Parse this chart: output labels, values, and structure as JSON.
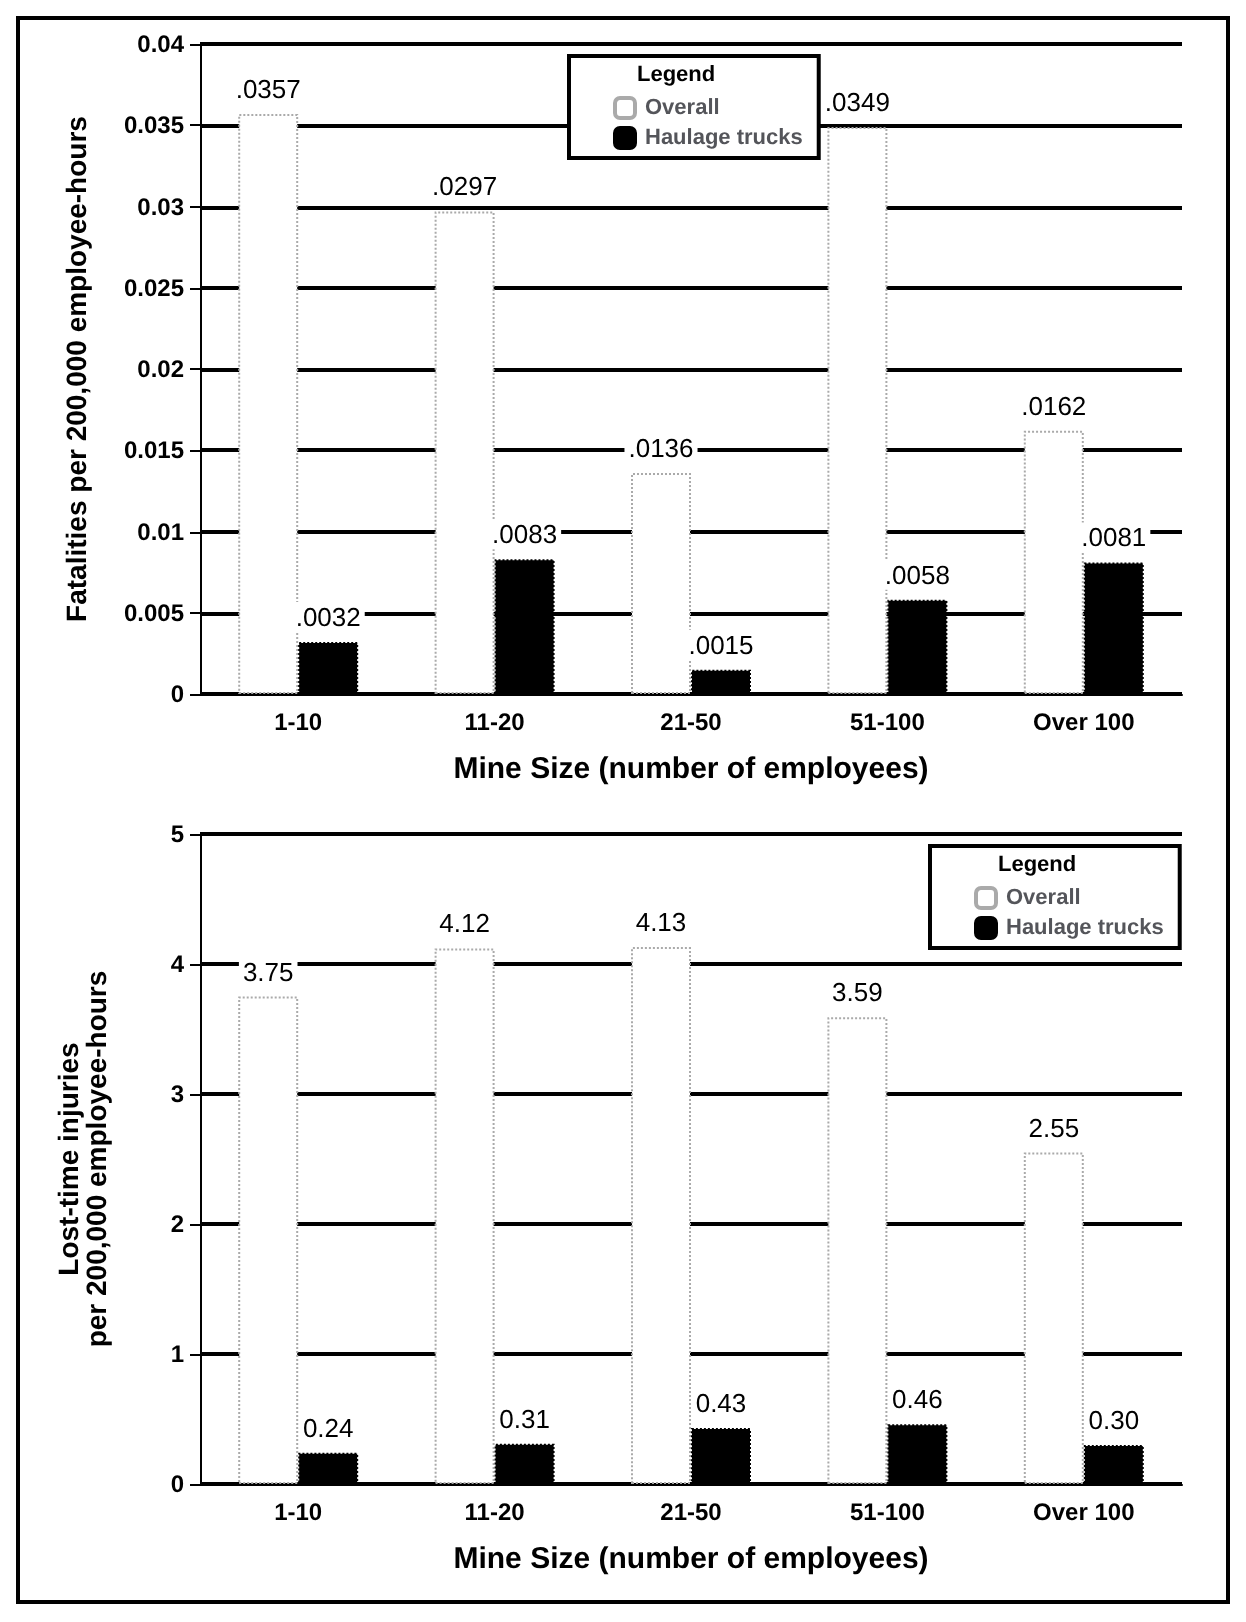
{
  "chart_data": [
    {
      "type": "bar",
      "categories": [
        "1-10",
        "11-20",
        "21-50",
        "51-100",
        "Over 100"
      ],
      "xlabel": "Mine Size (number of employees)",
      "ylabel": "Fatalities per 200,000 employee-hours",
      "legend_title": "Legend",
      "legend": "top right",
      "grid": "y",
      "ylim": [
        0,
        0.04
      ],
      "yticks": [
        0,
        0.005,
        0.01,
        0.015,
        0.02,
        0.025,
        0.03,
        0.035,
        0.04
      ],
      "series": [
        {
          "name": "Overall",
          "color": "#ffffff",
          "values": [
            0.0357,
            0.0297,
            0.0136,
            0.0349,
            0.0162
          ],
          "value_labels": [
            ".0357",
            ".0297",
            ".0136",
            ".0349",
            ".0162"
          ]
        },
        {
          "name": "Haulage trucks",
          "color": "#000000",
          "values": [
            0.0032,
            0.0083,
            0.0015,
            0.0058,
            0.0081
          ],
          "value_labels": [
            ".0032",
            ".0083",
            ".0015",
            ".0058",
            ".0081"
          ]
        }
      ]
    },
    {
      "type": "bar",
      "categories": [
        "1-10",
        "11-20",
        "21-50",
        "51-100",
        "Over 100"
      ],
      "xlabel": "Mine Size (number of employees)",
      "ylabel": "Lost-time injuries\nper 200,000 employee-hours",
      "legend_title": "Legend",
      "legend": "top right",
      "grid": "y",
      "ylim": [
        0,
        5
      ],
      "yticks": [
        0,
        1,
        2,
        3,
        4,
        5
      ],
      "series": [
        {
          "name": "Overall",
          "color": "#ffffff",
          "values": [
            3.75,
            4.12,
            4.13,
            3.59,
            2.55
          ],
          "value_labels": [
            "3.75",
            "4.12",
            "4.13",
            "3.59",
            "2.55"
          ]
        },
        {
          "name": "Haulage trucks",
          "color": "#000000",
          "values": [
            0.24,
            0.31,
            0.43,
            0.46,
            0.3
          ],
          "value_labels": [
            "0.24",
            "0.31",
            "0.43",
            "0.46",
            "0.30"
          ]
        }
      ]
    }
  ]
}
